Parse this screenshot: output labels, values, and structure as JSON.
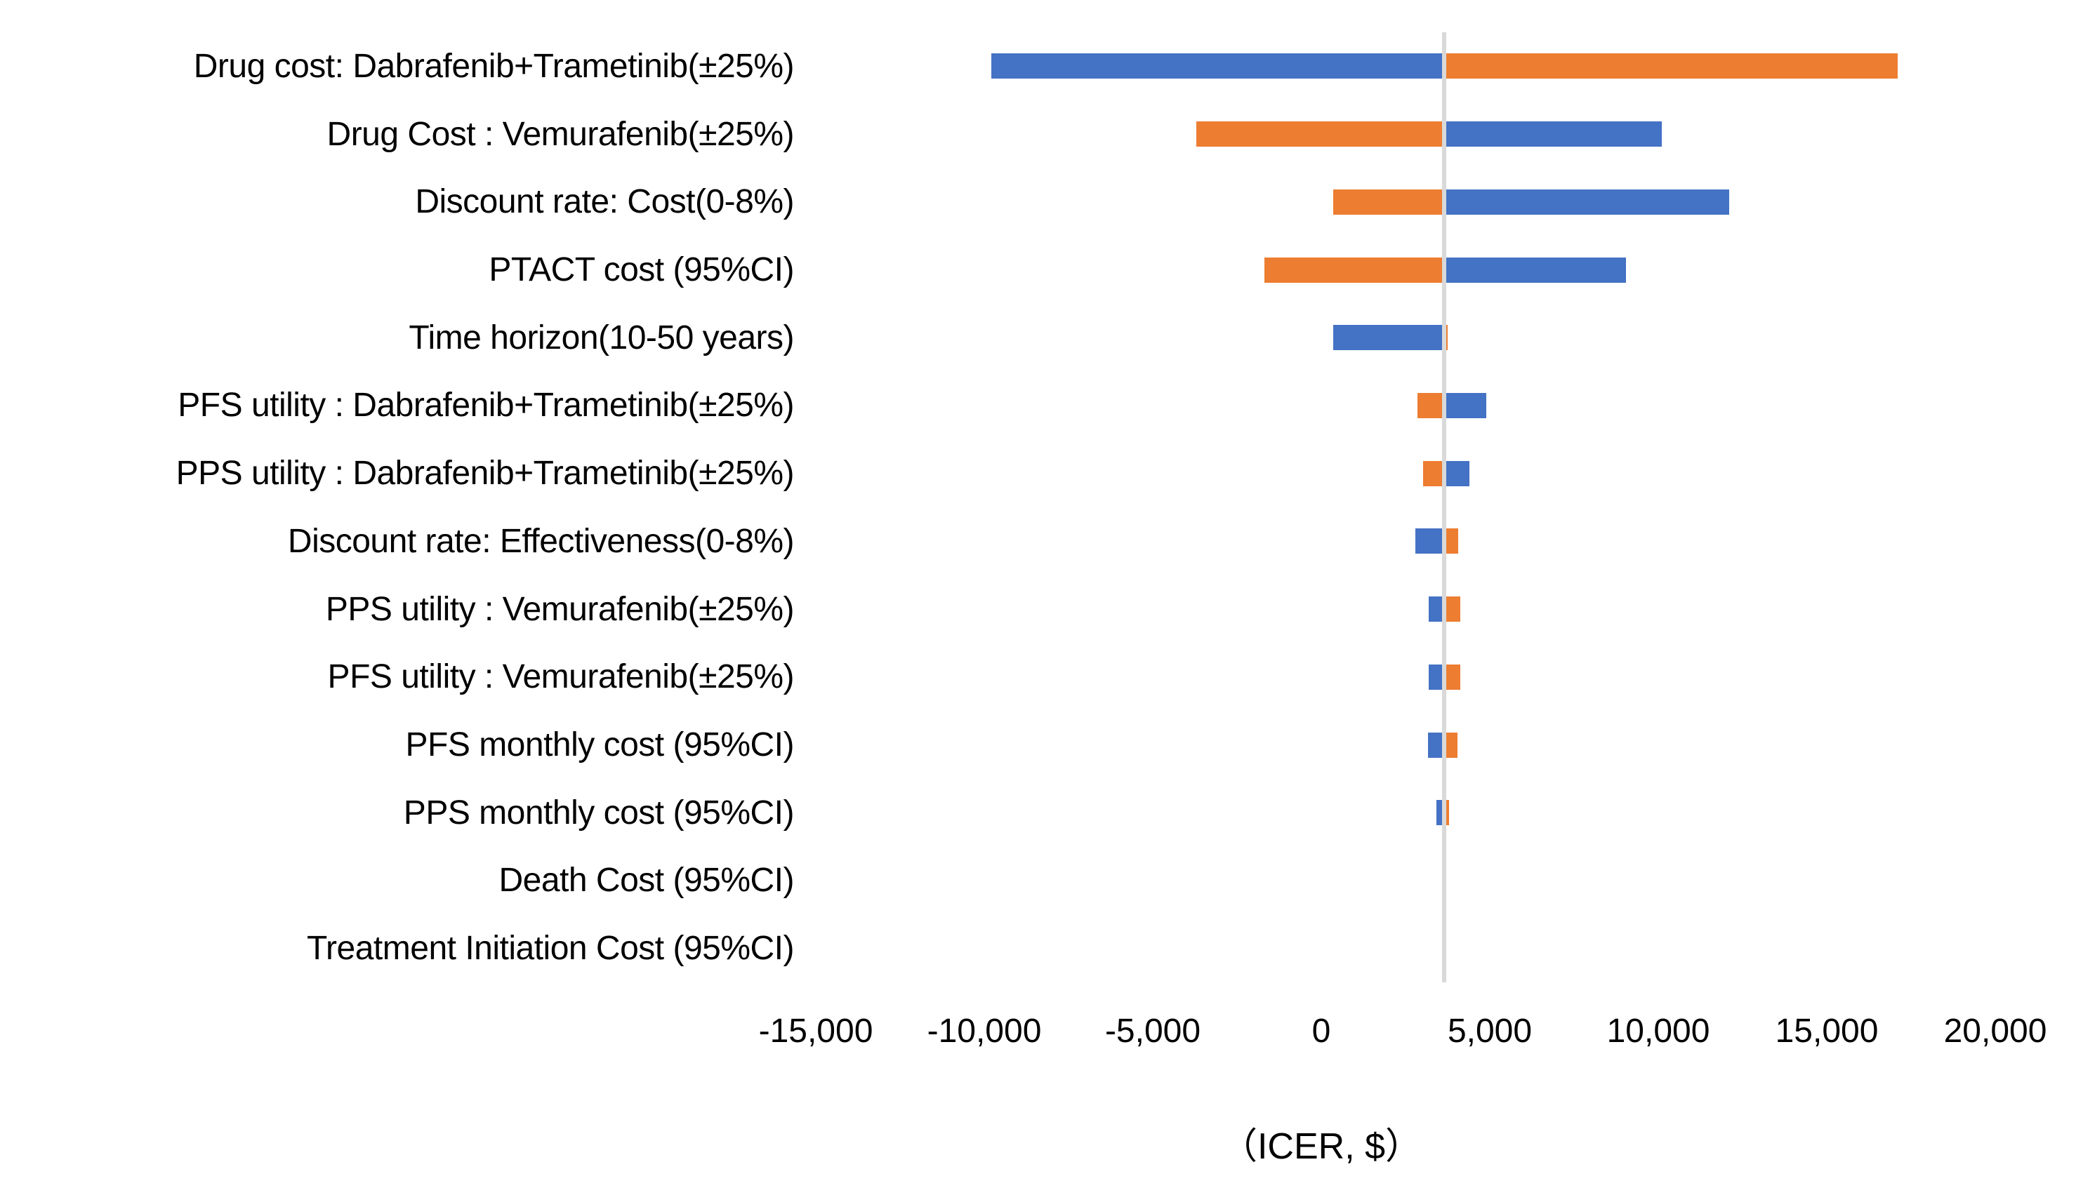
{
  "chart_data": {
    "type": "bar",
    "subtype": "tornado",
    "orientation": "horizontal",
    "title": "",
    "xlabel": "（ICER, $）",
    "baseline": 3650,
    "grid": false,
    "legend": false,
    "axis": {
      "min": -16250,
      "max": 21750,
      "tick_step": 5000,
      "ticks": [
        {
          "value": -15000,
          "label": "-15,000"
        },
        {
          "value": -10000,
          "label": "-10,000"
        },
        {
          "value": -5000,
          "label": "-5,000"
        },
        {
          "value": 0,
          "label": "0"
        },
        {
          "value": 5000,
          "label": "5,000"
        },
        {
          "value": 10000,
          "label": "10,000"
        },
        {
          "value": 15000,
          "label": "15,000"
        },
        {
          "value": 20000,
          "label": "20,000"
        }
      ]
    },
    "colors": {
      "blue": "#4472C4",
      "orange": "#ED7D31",
      "baseline_line": "#D9D9D9",
      "text": "#000000"
    },
    "rows": [
      {
        "label": "Drug cost: Dabrafenib+Trametinib(±25%)",
        "blue": -9800,
        "orange": 17100
      },
      {
        "label": "Drug Cost : Vemurafenib(±25%)",
        "blue": 10100,
        "orange": -3700
      },
      {
        "label": "Discount rate: Cost(0-8%)",
        "blue": 12100,
        "orange": 360
      },
      {
        "label": "PTACT cost (95%CI)",
        "blue": 9050,
        "orange": -1680
      },
      {
        "label": "Time horizon(10-50 years)",
        "blue": 360,
        "orange": 3760
      },
      {
        "label": "PFS utility : Dabrafenib+Trametinib(±25%)",
        "blue": 4900,
        "orange": 2850
      },
      {
        "label": "PPS utility : Dabrafenib+Trametinib(±25%)",
        "blue": 4400,
        "orange": 3020
      },
      {
        "label": "Discount rate: Effectiveness(0-8%)",
        "blue": 2790,
        "orange": 4060
      },
      {
        "label": "PPS utility : Vemurafenib(±25%)",
        "blue": 3180,
        "orange": 4130
      },
      {
        "label": "PFS utility : Vemurafenib(±25%)",
        "blue": 3190,
        "orange": 4120
      },
      {
        "label": "PFS monthly cost (95%CI)",
        "blue": 3160,
        "orange": 4040
      },
      {
        "label": "PPS monthly cost (95%CI)",
        "blue": 3420,
        "orange": 3790
      },
      {
        "label": "Death Cost (95%CI)",
        "blue": 3650,
        "orange": 3650
      },
      {
        "label": "Treatment Initiation Cost (95%CI)",
        "blue": 3650,
        "orange": 3650
      }
    ]
  }
}
